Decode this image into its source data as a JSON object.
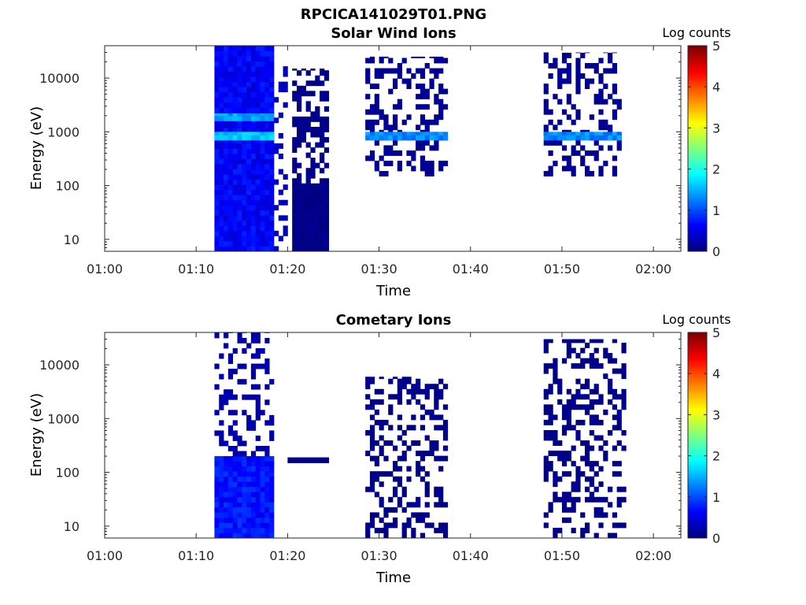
{
  "figure_title": "RPCICA141029T01.PNG",
  "chart_data": [
    {
      "type": "heatmap",
      "title": "Solar Wind Ions",
      "xlabel": "Time",
      "ylabel": "Energy (eV)",
      "x_ticks": [
        "01:00",
        "01:10",
        "01:20",
        "01:30",
        "01:40",
        "01:50",
        "02:00"
      ],
      "x_range": [
        "01:00",
        "02:03"
      ],
      "y_scale": "log",
      "y_ticks": [
        10,
        100,
        1000,
        10000
      ],
      "y_range": [
        6,
        40000
      ],
      "colorbar": {
        "label": "Log counts",
        "range": [
          0,
          5
        ],
        "ticks": [
          0,
          1,
          2,
          3,
          4,
          5
        ],
        "colormap": "jet"
      },
      "blocks": [
        {
          "t_start": "01:12",
          "t_end": "01:18.5",
          "e_low": 6,
          "e_high": 40000,
          "log_counts": 0.6,
          "note": "broad diffuse band"
        },
        {
          "t_start": "01:12",
          "t_end": "01:18.5",
          "e_low": 700,
          "e_high": 1000,
          "log_counts": 1.6
        },
        {
          "t_start": "01:12",
          "t_end": "01:18.5",
          "e_low": 1600,
          "e_high": 2200,
          "log_counts": 1.4
        },
        {
          "t_start": "01:18.5",
          "t_end": "01:20",
          "e_low": 6,
          "e_high": 20000,
          "log_counts": 0.3,
          "note": "sparse"
        },
        {
          "t_start": "01:20.5",
          "t_end": "01:24.5",
          "e_low": 6,
          "e_high": 110,
          "log_counts": 0.05
        },
        {
          "t_start": "01:20.5",
          "t_end": "01:24.5",
          "e_low": 110,
          "e_high": 15000,
          "log_counts": 0.05,
          "note": "horizontal stripes"
        },
        {
          "t_start": "01:28.5",
          "t_end": "01:37.5",
          "e_low": 150,
          "e_high": 25000,
          "log_counts": 0.1,
          "note": "scattered"
        },
        {
          "t_start": "01:28.5",
          "t_end": "01:37.5",
          "e_low": 700,
          "e_high": 1000,
          "log_counts": 1.3,
          "note": "peaks at 01:28.8, 01:32, 01:35.2"
        },
        {
          "t_start": "01:48",
          "t_end": "01:56.5",
          "e_low": 150,
          "e_high": 30000,
          "log_counts": 0.1,
          "note": "scattered"
        },
        {
          "t_start": "01:48",
          "t_end": "01:56.5",
          "e_low": 700,
          "e_high": 1000,
          "log_counts": 1.3,
          "note": "peaks at 01:48.3, 01:51.2, 01:54.5"
        }
      ]
    },
    {
      "type": "heatmap",
      "title": "Cometary Ions",
      "xlabel": "Time",
      "ylabel": "Energy (eV)",
      "x_ticks": [
        "01:00",
        "01:10",
        "01:20",
        "01:30",
        "01:40",
        "01:50",
        "02:00"
      ],
      "x_range": [
        "01:00",
        "02:03"
      ],
      "y_scale": "log",
      "y_ticks": [
        10,
        100,
        1000,
        10000
      ],
      "y_range": [
        6,
        40000
      ],
      "colorbar": {
        "label": "Log counts",
        "range": [
          0,
          5
        ],
        "ticks": [
          0,
          1,
          2,
          3,
          4,
          5
        ],
        "colormap": "jet"
      },
      "blocks": [
        {
          "t_start": "01:12",
          "t_end": "01:18.5",
          "e_low": 6,
          "e_high": 200,
          "log_counts": 0.7
        },
        {
          "t_start": "01:12",
          "t_end": "01:18.5",
          "e_low": 200,
          "e_high": 40000,
          "log_counts": 0.2,
          "note": "speckled"
        },
        {
          "t_start": "01:20",
          "t_end": "01:24.5",
          "e_low": 150,
          "e_high": 190,
          "log_counts": 0.05,
          "note": "horizontal strip"
        },
        {
          "t_start": "01:28.5",
          "t_end": "01:37.5",
          "e_low": 6,
          "e_high": 6000,
          "log_counts": 0.05,
          "note": "sparse"
        },
        {
          "t_start": "01:48",
          "t_end": "01:57",
          "e_low": 6,
          "e_high": 30000,
          "log_counts": 0.05,
          "note": "sparse"
        }
      ]
    }
  ]
}
